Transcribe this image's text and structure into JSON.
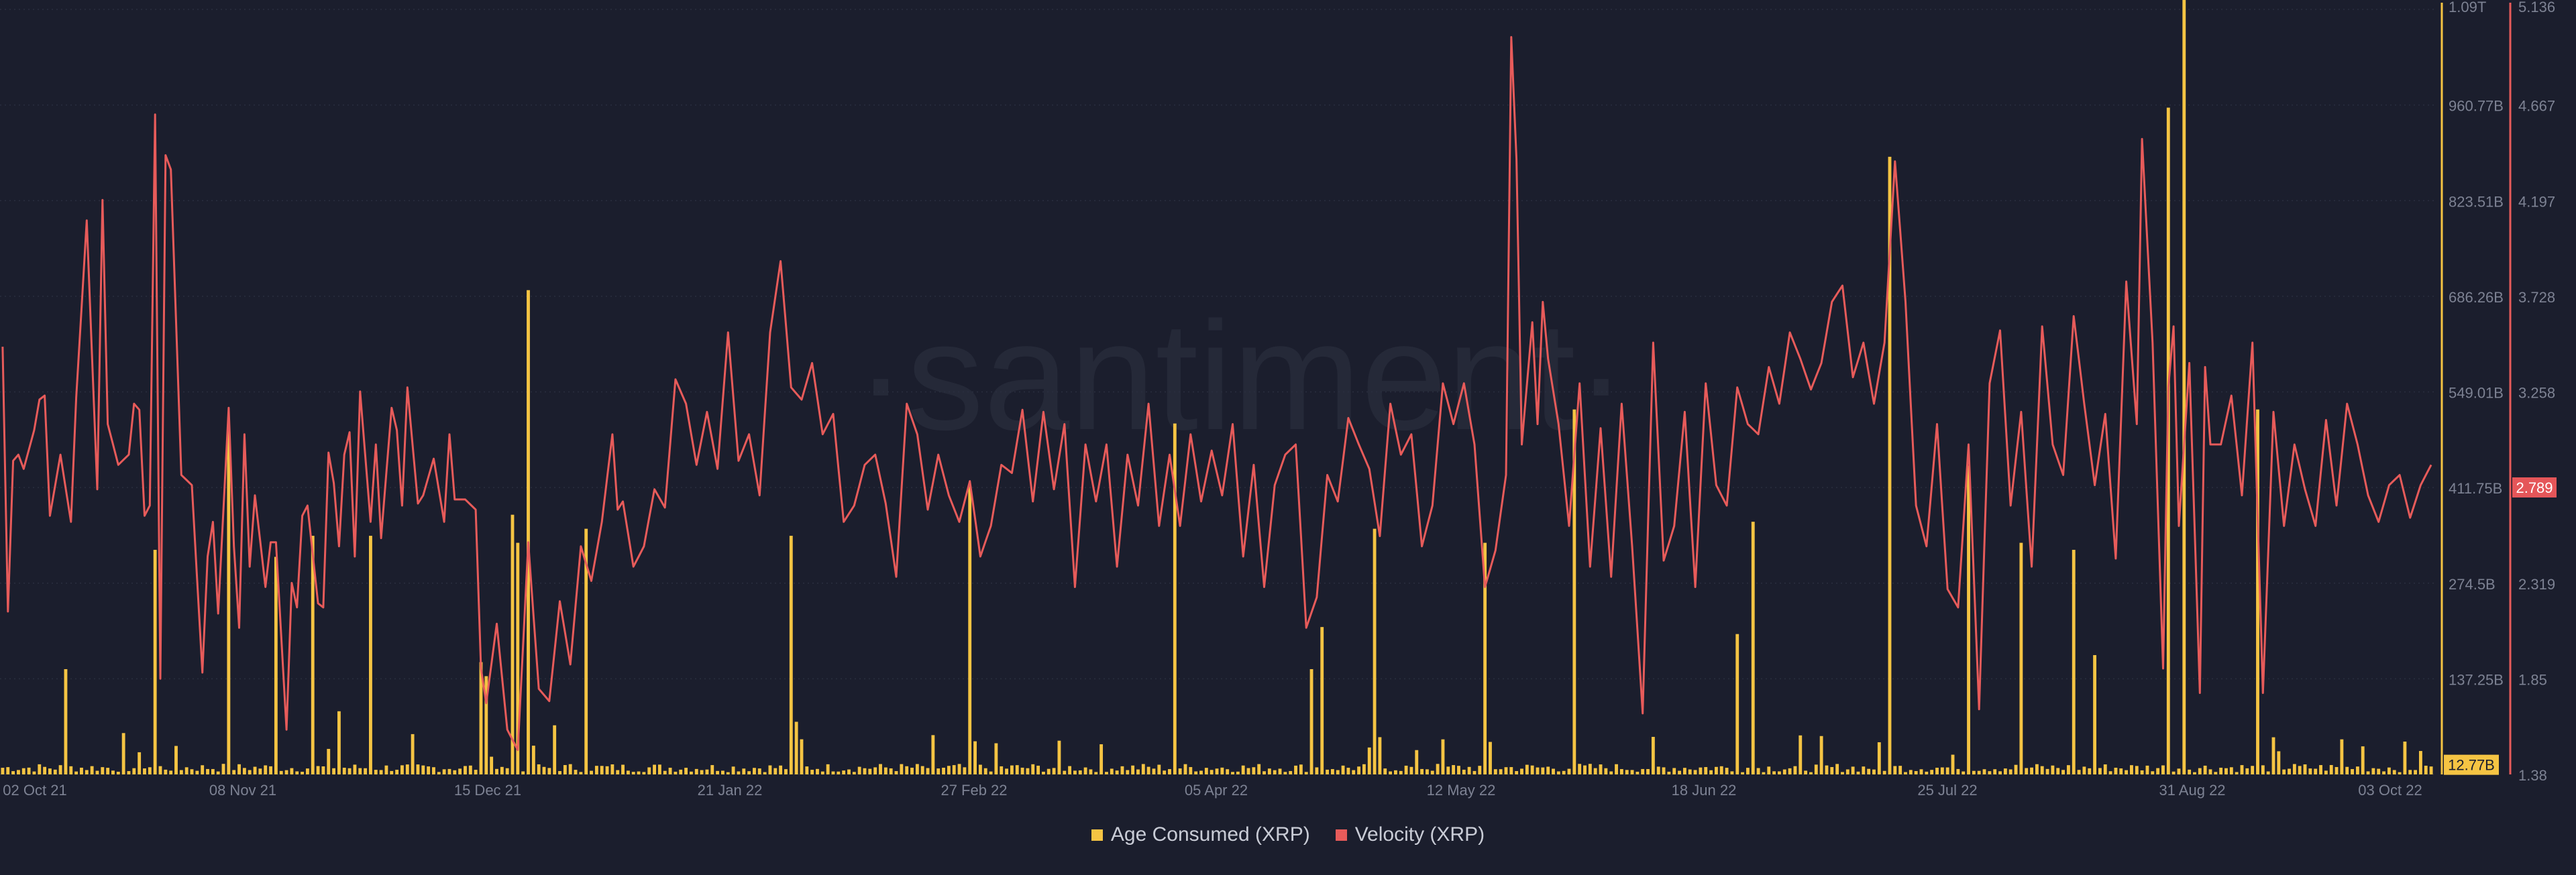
{
  "watermark": "·santiment·",
  "chart_data": {
    "type": "bar+line",
    "x_ticks": [
      "02 Oct 21",
      "08 Nov 21",
      "15 Dec 21",
      "21 Jan 22",
      "27 Feb 22",
      "05 Apr 22",
      "12 May 22",
      "18 Jun 22",
      "25 Jul 22",
      "31 Aug 22",
      "03 Oct 22"
    ],
    "left_axis_ticks": [
      "1.09T",
      "960.77B",
      "823.51B",
      "686.26B",
      "549.01B",
      "411.75B",
      "274.5B",
      "137.25B"
    ],
    "left_axis_current": "12.77B",
    "right_axis_ticks": [
      "5.136",
      "4.667",
      "4.197",
      "3.728",
      "3.258",
      "2.789",
      "2.319",
      "1.85",
      "1.38"
    ],
    "right_axis_current": "2.789",
    "left_range": [
      0,
      1090000000000.0
    ],
    "right_range": [
      1.38,
      5.136
    ],
    "colors": {
      "bars": "#f5c443",
      "line": "#e75b5a",
      "background": "#1b1e2d",
      "grid": "#2a2e3f",
      "text": "#7d8293",
      "current_right_bg": "#e55659"
    },
    "series": [
      {
        "name": "Age Consumed (XRP)",
        "axis": "left",
        "style": "bar",
        "unit": "XRP",
        "spikes": [
          [
            12,
            150
          ],
          [
            29,
            320
          ],
          [
            43,
            490
          ],
          [
            52,
            310
          ],
          [
            59,
            340
          ],
          [
            64,
            90
          ],
          [
            70,
            340
          ],
          [
            91,
            160
          ],
          [
            92,
            140
          ],
          [
            97,
            370
          ],
          [
            98,
            330
          ],
          [
            100,
            690
          ],
          [
            105,
            70
          ],
          [
            111,
            350
          ],
          [
            150,
            340
          ],
          [
            151,
            75
          ],
          [
            184,
            410
          ],
          [
            223,
            500
          ],
          [
            249,
            150
          ],
          [
            251,
            210
          ],
          [
            261,
            350
          ],
          [
            274,
            50
          ],
          [
            282,
            330
          ],
          [
            299,
            520
          ],
          [
            330,
            200
          ],
          [
            333,
            360
          ],
          [
            359,
            880
          ],
          [
            374,
            440
          ],
          [
            384,
            330
          ],
          [
            394,
            320
          ],
          [
            398,
            170
          ],
          [
            412,
            950
          ],
          [
            415,
            1140
          ],
          [
            429,
            520
          ],
          [
            445,
            50
          ],
          [
            449,
            40
          ]
        ],
        "baseline": 8
      },
      {
        "name": "Velocity (XRP)",
        "axis": "right",
        "style": "line",
        "unit": "XRP",
        "anchors": [
          [
            0,
            3.48
          ],
          [
            1,
            2.18
          ],
          [
            2,
            2.92
          ],
          [
            3,
            2.95
          ],
          [
            4,
            2.88
          ],
          [
            6,
            3.07
          ],
          [
            7,
            3.22
          ],
          [
            8,
            3.24
          ],
          [
            9,
            2.65
          ],
          [
            11,
            2.95
          ],
          [
            13,
            2.62
          ],
          [
            14,
            3.23
          ],
          [
            16,
            4.1
          ],
          [
            18,
            2.78
          ],
          [
            19,
            4.2
          ],
          [
            20,
            3.1
          ],
          [
            22,
            2.9
          ],
          [
            24,
            2.95
          ],
          [
            25,
            3.2
          ],
          [
            26,
            3.17
          ],
          [
            27,
            2.65
          ],
          [
            28,
            2.7
          ],
          [
            29,
            4.62
          ],
          [
            30,
            1.85
          ],
          [
            31,
            4.42
          ],
          [
            32,
            4.35
          ],
          [
            34,
            2.85
          ],
          [
            36,
            2.8
          ],
          [
            38,
            1.88
          ],
          [
            39,
            2.45
          ],
          [
            40,
            2.62
          ],
          [
            41,
            2.17
          ],
          [
            43,
            3.18
          ],
          [
            44,
            2.5
          ],
          [
            45,
            2.1
          ],
          [
            46,
            3.05
          ],
          [
            47,
            2.4
          ],
          [
            48,
            2.75
          ],
          [
            50,
            2.3
          ],
          [
            51,
            2.52
          ],
          [
            52,
            2.52
          ],
          [
            54,
            1.6
          ],
          [
            55,
            2.32
          ],
          [
            56,
            2.2
          ],
          [
            57,
            2.65
          ],
          [
            58,
            2.7
          ],
          [
            60,
            2.22
          ],
          [
            61,
            2.2
          ],
          [
            62,
            2.96
          ],
          [
            63,
            2.81
          ],
          [
            64,
            2.5
          ],
          [
            65,
            2.95
          ],
          [
            66,
            3.06
          ],
          [
            67,
            2.45
          ],
          [
            68,
            3.26
          ],
          [
            70,
            2.62
          ],
          [
            71,
            3.0
          ],
          [
            72,
            2.54
          ],
          [
            74,
            3.18
          ],
          [
            75,
            3.07
          ],
          [
            76,
            2.7
          ],
          [
            77,
            3.28
          ],
          [
            79,
            2.71
          ],
          [
            80,
            2.75
          ],
          [
            82,
            2.93
          ],
          [
            84,
            2.62
          ],
          [
            85,
            3.05
          ],
          [
            86,
            2.73
          ],
          [
            88,
            2.73
          ],
          [
            90,
            2.68
          ],
          [
            91,
            1.9
          ],
          [
            92,
            1.73
          ],
          [
            94,
            2.12
          ],
          [
            96,
            1.6
          ],
          [
            98,
            1.5
          ],
          [
            100,
            2.52
          ],
          [
            102,
            1.8
          ],
          [
            104,
            1.74
          ],
          [
            106,
            2.23
          ],
          [
            108,
            1.92
          ],
          [
            110,
            2.5
          ],
          [
            112,
            2.33
          ],
          [
            114,
            2.62
          ],
          [
            116,
            3.05
          ],
          [
            117,
            2.68
          ],
          [
            118,
            2.72
          ],
          [
            120,
            2.4
          ],
          [
            122,
            2.5
          ],
          [
            124,
            2.78
          ],
          [
            126,
            2.69
          ],
          [
            128,
            3.32
          ],
          [
            130,
            3.2
          ],
          [
            132,
            2.9
          ],
          [
            134,
            3.16
          ],
          [
            136,
            2.88
          ],
          [
            138,
            3.55
          ],
          [
            140,
            2.92
          ],
          [
            142,
            3.05
          ],
          [
            144,
            2.75
          ],
          [
            146,
            3.55
          ],
          [
            148,
            3.9
          ],
          [
            150,
            3.28
          ],
          [
            152,
            3.22
          ],
          [
            154,
            3.4
          ],
          [
            156,
            3.05
          ],
          [
            158,
            3.15
          ],
          [
            160,
            2.62
          ],
          [
            162,
            2.7
          ],
          [
            164,
            2.9
          ],
          [
            166,
            2.95
          ],
          [
            168,
            2.71
          ],
          [
            170,
            2.35
          ],
          [
            172,
            3.2
          ],
          [
            174,
            3.05
          ],
          [
            176,
            2.68
          ],
          [
            178,
            2.95
          ],
          [
            180,
            2.75
          ],
          [
            182,
            2.62
          ],
          [
            184,
            2.82
          ],
          [
            186,
            2.45
          ],
          [
            188,
            2.6
          ],
          [
            190,
            2.9
          ],
          [
            192,
            2.86
          ],
          [
            194,
            3.17
          ],
          [
            196,
            2.72
          ],
          [
            198,
            3.16
          ],
          [
            200,
            2.78
          ],
          [
            202,
            3.1
          ],
          [
            204,
            2.3
          ],
          [
            206,
            3.0
          ],
          [
            208,
            2.72
          ],
          [
            210,
            3.0
          ],
          [
            212,
            2.4
          ],
          [
            214,
            2.95
          ],
          [
            216,
            2.7
          ],
          [
            218,
            3.2
          ],
          [
            220,
            2.6
          ],
          [
            222,
            2.95
          ],
          [
            224,
            2.6
          ],
          [
            226,
            3.05
          ],
          [
            228,
            2.72
          ],
          [
            230,
            2.97
          ],
          [
            232,
            2.75
          ],
          [
            234,
            3.1
          ],
          [
            236,
            2.45
          ],
          [
            238,
            2.9
          ],
          [
            240,
            2.3
          ],
          [
            242,
            2.8
          ],
          [
            244,
            2.95
          ],
          [
            246,
            3.0
          ],
          [
            248,
            2.1
          ],
          [
            250,
            2.25
          ],
          [
            252,
            2.85
          ],
          [
            254,
            2.72
          ],
          [
            256,
            3.13
          ],
          [
            258,
            3.0
          ],
          [
            260,
            2.88
          ],
          [
            262,
            2.55
          ],
          [
            264,
            3.2
          ],
          [
            266,
            2.95
          ],
          [
            268,
            3.05
          ],
          [
            270,
            2.5
          ],
          [
            272,
            2.7
          ],
          [
            274,
            3.3
          ],
          [
            276,
            3.1
          ],
          [
            278,
            3.3
          ],
          [
            280,
            3.0
          ],
          [
            282,
            2.3
          ],
          [
            284,
            2.48
          ],
          [
            286,
            2.85
          ],
          [
            287,
            5.0
          ],
          [
            288,
            4.4
          ],
          [
            289,
            3.0
          ],
          [
            291,
            3.6
          ],
          [
            292,
            3.1
          ],
          [
            293,
            3.7
          ],
          [
            294,
            3.42
          ],
          [
            296,
            3.1
          ],
          [
            298,
            2.6
          ],
          [
            300,
            3.3
          ],
          [
            302,
            2.4
          ],
          [
            304,
            3.08
          ],
          [
            306,
            2.35
          ],
          [
            308,
            3.2
          ],
          [
            310,
            2.5
          ],
          [
            312,
            1.68
          ],
          [
            314,
            3.5
          ],
          [
            316,
            2.43
          ],
          [
            318,
            2.6
          ],
          [
            320,
            3.16
          ],
          [
            322,
            2.3
          ],
          [
            324,
            3.3
          ],
          [
            326,
            2.8
          ],
          [
            328,
            2.7
          ],
          [
            330,
            3.28
          ],
          [
            332,
            3.1
          ],
          [
            334,
            3.05
          ],
          [
            336,
            3.38
          ],
          [
            338,
            3.2
          ],
          [
            340,
            3.55
          ],
          [
            342,
            3.42
          ],
          [
            344,
            3.27
          ],
          [
            346,
            3.4
          ],
          [
            348,
            3.7
          ],
          [
            350,
            3.78
          ],
          [
            352,
            3.33
          ],
          [
            354,
            3.5
          ],
          [
            356,
            3.2
          ],
          [
            358,
            3.5
          ],
          [
            360,
            4.39
          ],
          [
            362,
            3.7
          ],
          [
            364,
            2.7
          ],
          [
            366,
            2.5
          ],
          [
            368,
            3.1
          ],
          [
            370,
            2.29
          ],
          [
            372,
            2.2
          ],
          [
            374,
            3.0
          ],
          [
            376,
            1.7
          ],
          [
            378,
            3.3
          ],
          [
            380,
            3.56
          ],
          [
            382,
            2.7
          ],
          [
            384,
            3.16
          ],
          [
            386,
            2.4
          ],
          [
            388,
            3.58
          ],
          [
            390,
            3.0
          ],
          [
            392,
            2.85
          ],
          [
            394,
            3.63
          ],
          [
            396,
            3.2
          ],
          [
            398,
            2.8
          ],
          [
            400,
            3.15
          ],
          [
            402,
            2.44
          ],
          [
            404,
            3.8
          ],
          [
            406,
            3.1
          ],
          [
            407,
            4.5
          ],
          [
            409,
            3.5
          ],
          [
            411,
            1.9
          ],
          [
            412,
            3.28
          ],
          [
            413,
            3.58
          ],
          [
            414,
            2.6
          ],
          [
            416,
            3.4
          ],
          [
            418,
            1.78
          ],
          [
            419,
            3.38
          ],
          [
            420,
            3.0
          ],
          [
            422,
            3.0
          ],
          [
            424,
            3.24
          ],
          [
            426,
            2.75
          ],
          [
            428,
            3.5
          ],
          [
            430,
            1.78
          ],
          [
            432,
            3.16
          ],
          [
            434,
            2.6
          ],
          [
            436,
            3.0
          ],
          [
            438,
            2.78
          ],
          [
            440,
            2.6
          ],
          [
            442,
            3.12
          ],
          [
            444,
            2.7
          ],
          [
            446,
            3.2
          ],
          [
            448,
            3.0
          ],
          [
            450,
            2.75
          ],
          [
            452,
            2.62
          ],
          [
            454,
            2.8
          ],
          [
            456,
            2.85
          ],
          [
            458,
            2.64
          ],
          [
            460,
            2.8
          ],
          [
            462,
            2.9
          ]
        ]
      }
    ]
  },
  "legend": [
    {
      "label": "Age Consumed (XRP)",
      "color": "#f5c443"
    },
    {
      "label": "Velocity (XRP)",
      "color": "#e75b5a"
    }
  ]
}
